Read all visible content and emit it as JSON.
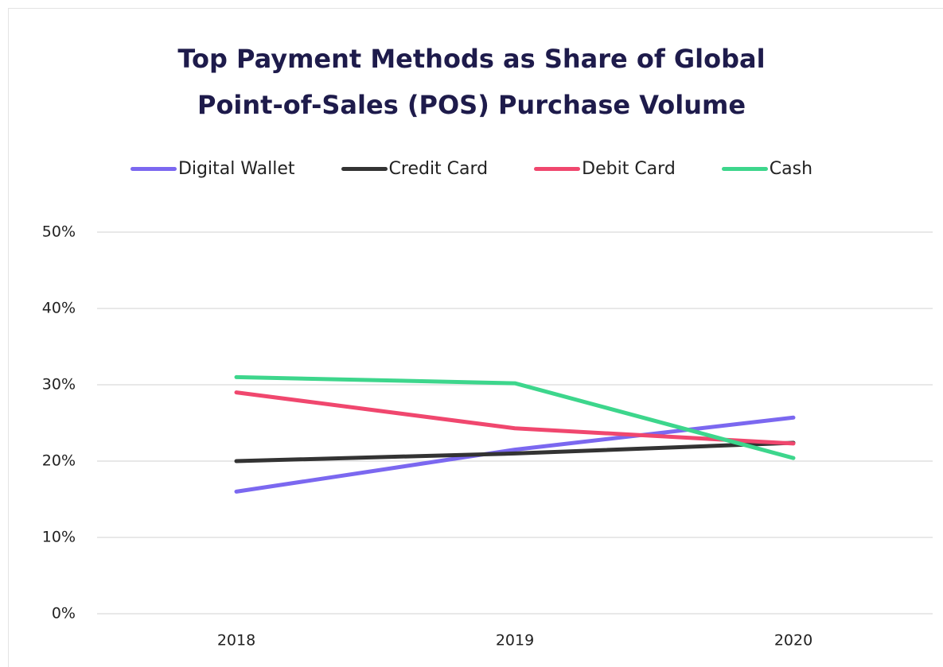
{
  "chart_data": {
    "type": "line",
    "title": "Top Payment Methods as Share of Global Point-of-Sales (POS) Purchase Volume",
    "categories": [
      "2018",
      "2019",
      "2020"
    ],
    "series": [
      {
        "name": "Digital Wallet",
        "color": "#7b68f0",
        "values": [
          16,
          21.5,
          25.7
        ]
      },
      {
        "name": "Credit Card",
        "color": "#333333",
        "values": [
          20,
          21,
          22.4
        ]
      },
      {
        "name": "Debit Card",
        "color": "#f0476e",
        "values": [
          29,
          24.3,
          22.3
        ]
      },
      {
        "name": "Cash",
        "color": "#3dd68c",
        "values": [
          31,
          30.2,
          20.4
        ]
      }
    ],
    "ylim": [
      0,
      50
    ],
    "yticks": [
      {
        "value": 0,
        "label": "0%"
      },
      {
        "value": 10,
        "label": "10%"
      },
      {
        "value": 20,
        "label": "20%"
      },
      {
        "value": 30,
        "label": "30%"
      },
      {
        "value": 40,
        "label": "40%"
      },
      {
        "value": 50,
        "label": "50%"
      }
    ],
    "grid": true,
    "legend": "top"
  }
}
